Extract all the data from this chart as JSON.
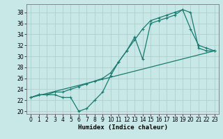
{
  "xlabel": "Humidex (Indice chaleur)",
  "bg_color": "#c8e8e8",
  "line_color": "#1a7a6e",
  "grid_color": "#b0d0d0",
  "xlim": [
    -0.5,
    23.5
  ],
  "ylim": [
    19.5,
    39.5
  ],
  "xticks": [
    0,
    1,
    2,
    3,
    4,
    5,
    6,
    7,
    8,
    9,
    10,
    11,
    12,
    13,
    14,
    15,
    16,
    17,
    18,
    19,
    20,
    21,
    22,
    23
  ],
  "yticks": [
    20,
    22,
    24,
    26,
    28,
    30,
    32,
    34,
    36,
    38
  ],
  "line1_x": [
    0,
    1,
    2,
    3,
    4,
    5,
    6,
    7,
    8,
    9,
    10,
    11,
    12,
    13,
    14,
    15,
    16,
    17,
    18,
    19,
    20,
    21,
    22,
    23
  ],
  "line1_y": [
    22.5,
    23,
    23,
    23,
    22.5,
    22.5,
    20,
    20.5,
    22,
    23.5,
    26.5,
    29,
    31,
    33.5,
    29.5,
    36,
    36.5,
    37,
    37.5,
    38.5,
    35,
    32,
    31.5,
    31
  ],
  "line2_x": [
    0,
    1,
    2,
    3,
    4,
    5,
    6,
    7,
    8,
    9,
    10,
    11,
    12,
    13,
    14,
    15,
    16,
    17,
    18,
    19,
    20,
    21,
    22,
    23
  ],
  "line2_y": [
    22.5,
    23,
    23,
    23.5,
    23.5,
    24,
    24.5,
    25,
    25.5,
    26,
    27,
    29,
    31,
    33,
    35,
    36.5,
    37,
    37.5,
    38,
    38.5,
    38,
    31.5,
    31,
    31
  ],
  "line3_x": [
    0,
    23
  ],
  "line3_y": [
    22.5,
    31
  ]
}
